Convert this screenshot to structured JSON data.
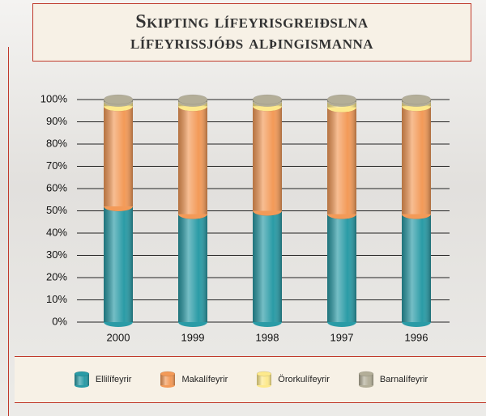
{
  "chart_data": {
    "type": "stacked-cylinder",
    "title": "Skipting lífeyrisgreiðslna lífeyrissjóðs alþingismanna",
    "categories": [
      "2000",
      "1999",
      "1998",
      "1997",
      "1996"
    ],
    "series": [
      {
        "name": "Ellilífeyrir",
        "color": "#2a9ba6",
        "values": [
          52,
          48.5,
          50,
          48.5,
          48.5
        ]
      },
      {
        "name": "Makalífeyrir",
        "color": "#f39a58",
        "values": [
          45,
          48.5,
          47,
          48,
          48.5
        ]
      },
      {
        "name": "Örorkulífeyrir",
        "color": "#fde98c",
        "values": [
          2,
          2,
          2,
          2.5,
          2
        ]
      },
      {
        "name": "Barnalífeyrir",
        "color": "#b3ae98",
        "values": [
          1,
          1,
          1,
          1,
          1
        ]
      }
    ],
    "ylim": [
      0,
      100
    ],
    "yticks": [
      {
        "value": 0,
        "label": "0%"
      },
      {
        "value": 10,
        "label": "10%"
      },
      {
        "value": 20,
        "label": "20%"
      },
      {
        "value": 30,
        "label": "30%"
      },
      {
        "value": 40,
        "label": "40%"
      },
      {
        "value": 50,
        "label": "50%"
      },
      {
        "value": 60,
        "label": "60%"
      },
      {
        "value": 70,
        "label": "70%"
      },
      {
        "value": 80,
        "label": "80%"
      },
      {
        "value": 90,
        "label": "90%"
      },
      {
        "value": 100,
        "label": "100%"
      }
    ],
    "grid": true,
    "legend": "bottom"
  }
}
